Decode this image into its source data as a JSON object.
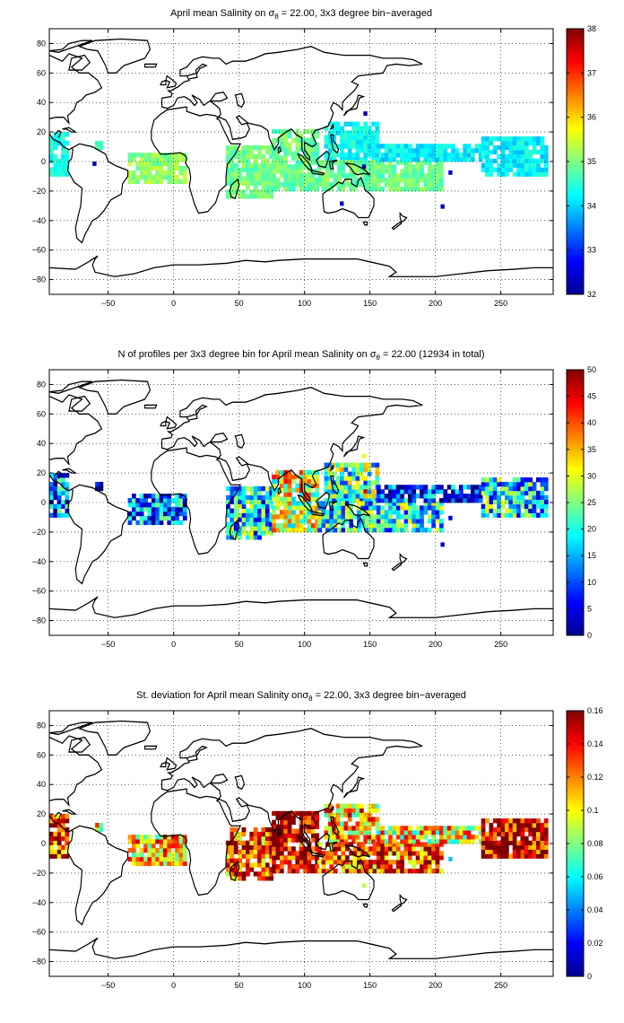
{
  "chart_data": [
    {
      "type": "heatmap",
      "title_pre": "April mean Salinity on ",
      "title_sym": "σ",
      "title_sub": "θ",
      "title_post": " = 22.00, 3x3 degree bin−averaged",
      "xlim": [
        -95,
        290
      ],
      "ylim": [
        -90,
        90
      ],
      "xticks": [
        -50,
        0,
        50,
        100,
        150,
        200,
        250
      ],
      "xtick_labels": [
        "−50",
        "0",
        "50",
        "100",
        "150",
        "200",
        "250"
      ],
      "yticks": [
        -80,
        -60,
        -40,
        -20,
        0,
        20,
        40,
        60,
        80
      ],
      "ytick_labels": [
        "−80",
        "−60",
        "−40",
        "−20",
        "0",
        "20",
        "40",
        "60",
        "80"
      ],
      "grid": true,
      "colorbar": {
        "range": [
          32,
          38
        ],
        "ticks": [
          32,
          33,
          34,
          35,
          36,
          37,
          38
        ],
        "tick_labels": [
          "32",
          "33",
          "34",
          "35",
          "36",
          "37",
          "38"
        ],
        "colormap": "jet"
      },
      "regions": [
        {
          "lon": [
            -95,
            -80
          ],
          "lat": [
            -10,
            18
          ],
          "value": 34.3
        },
        {
          "lon": [
            -60,
            -55
          ],
          "lat": [
            8,
            12
          ],
          "value": 34.6
        },
        {
          "lon": [
            -35,
            10
          ],
          "lat": [
            -15,
            5
          ],
          "value": 35.1
        },
        {
          "lon": [
            40,
            75
          ],
          "lat": [
            -25,
            10
          ],
          "value": 34.9
        },
        {
          "lon": [
            75,
            110
          ],
          "lat": [
            -20,
            20
          ],
          "value": 34.9
        },
        {
          "lon": [
            115,
            155
          ],
          "lat": [
            0,
            25
          ],
          "value": 34.3
        },
        {
          "lon": [
            110,
            205
          ],
          "lat": [
            -20,
            0
          ],
          "value": 34.9
        },
        {
          "lon": [
            155,
            235
          ],
          "lat": [
            0,
            10
          ],
          "value": 34.2
        },
        {
          "lon": [
            235,
            285
          ],
          "lat": [
            -10,
            15
          ],
          "value": 34.2
        }
      ],
      "outliers": [
        {
          "lon": 144,
          "lat": -5,
          "value": 32.2
        },
        {
          "lon": 145,
          "lat": 31,
          "value": 32.3
        },
        {
          "lon": 210,
          "lat": -9,
          "value": 32.4
        },
        {
          "lon": 204,
          "lat": -32,
          "value": 32.4
        },
        {
          "lon": 127,
          "lat": -30,
          "value": 32.4
        },
        {
          "lon": -62,
          "lat": -3,
          "value": 32.3
        }
      ]
    },
    {
      "type": "heatmap",
      "title_pre": "N of profiles per 3x3 degree bin for April mean Salinity on ",
      "title_sym": "σ",
      "title_sub": "θ",
      "title_post": " = 22.00 (12934 in total)",
      "xlim": [
        -95,
        290
      ],
      "ylim": [
        -90,
        90
      ],
      "xticks": [
        -50,
        0,
        50,
        100,
        150,
        200,
        250
      ],
      "xtick_labels": [
        "−50",
        "0",
        "50",
        "100",
        "150",
        "200",
        "250"
      ],
      "yticks": [
        -80,
        -60,
        -40,
        -20,
        0,
        20,
        40,
        60,
        80
      ],
      "ytick_labels": [
        "−80",
        "−60",
        "−40",
        "−20",
        "0",
        "20",
        "40",
        "60",
        "80"
      ],
      "grid": true,
      "colorbar": {
        "range": [
          0,
          50
        ],
        "ticks": [
          0,
          5,
          10,
          15,
          20,
          25,
          30,
          35,
          40,
          45,
          50
        ],
        "tick_labels": [
          "0",
          "5",
          "10",
          "15",
          "20",
          "25",
          "30",
          "35",
          "40",
          "45",
          "50"
        ],
        "colormap": "jet"
      },
      "regions": [
        {
          "lon": [
            -95,
            -80
          ],
          "lat": [
            -10,
            18
          ],
          "value": 12
        },
        {
          "lon": [
            -60,
            -55
          ],
          "lat": [
            8,
            12
          ],
          "value": 5
        },
        {
          "lon": [
            -35,
            10
          ],
          "lat": [
            -15,
            5
          ],
          "value": 12
        },
        {
          "lon": [
            40,
            75
          ],
          "lat": [
            -25,
            10
          ],
          "value": 18
        },
        {
          "lon": [
            75,
            110
          ],
          "lat": [
            -20,
            20
          ],
          "value": 30
        },
        {
          "lon": [
            115,
            155
          ],
          "lat": [
            0,
            25
          ],
          "value": 22
        },
        {
          "lon": [
            110,
            205
          ],
          "lat": [
            -20,
            0
          ],
          "value": 20
        },
        {
          "lon": [
            155,
            235
          ],
          "lat": [
            0,
            10
          ],
          "value": 8
        },
        {
          "lon": [
            235,
            285
          ],
          "lat": [
            -10,
            15
          ],
          "value": 18
        }
      ],
      "outliers": [
        {
          "lon": 144,
          "lat": 30,
          "value": 30
        },
        {
          "lon": 145,
          "lat": 6,
          "value": 45
        },
        {
          "lon": 210,
          "lat": -12,
          "value": 4
        },
        {
          "lon": 204,
          "lat": -30,
          "value": 3
        }
      ]
    },
    {
      "type": "heatmap",
      "title_pre": "St. deviation for April mean Salinity on",
      "title_sym": "σ",
      "title_sub": "θ",
      "title_post": " = 22.00, 3x3 degree bin−averaged",
      "xlim": [
        -95,
        290
      ],
      "ylim": [
        -90,
        90
      ],
      "xticks": [
        -50,
        0,
        50,
        100,
        150,
        200,
        250
      ],
      "xtick_labels": [
        "−50",
        "0",
        "50",
        "100",
        "150",
        "200",
        "250"
      ],
      "yticks": [
        -80,
        -60,
        -40,
        -20,
        0,
        20,
        40,
        60,
        80
      ],
      "ytick_labels": [
        "−80",
        "−60",
        "−40",
        "−20",
        "0",
        "20",
        "40",
        "60",
        "80"
      ],
      "grid": true,
      "colorbar": {
        "range": [
          0,
          0.16
        ],
        "ticks": [
          0,
          0.02,
          0.04,
          0.06,
          0.08,
          0.1,
          0.12,
          0.14,
          0.16
        ],
        "tick_labels": [
          "0",
          "0.02",
          "0.04",
          "0.06",
          "0.08",
          "0.1",
          "0.12",
          "0.14",
          "0.16"
        ],
        "colormap": "jet"
      },
      "regions": [
        {
          "lon": [
            -95,
            -80
          ],
          "lat": [
            -10,
            18
          ],
          "value": 0.14
        },
        {
          "lon": [
            -60,
            -55
          ],
          "lat": [
            8,
            12
          ],
          "value": 0.09
        },
        {
          "lon": [
            -35,
            10
          ],
          "lat": [
            -15,
            5
          ],
          "value": 0.11
        },
        {
          "lon": [
            40,
            75
          ],
          "lat": [
            -25,
            10
          ],
          "value": 0.13
        },
        {
          "lon": [
            75,
            110
          ],
          "lat": [
            -20,
            20
          ],
          "value": 0.15
        },
        {
          "lon": [
            115,
            155
          ],
          "lat": [
            0,
            25
          ],
          "value": 0.11
        },
        {
          "lon": [
            110,
            205
          ],
          "lat": [
            -20,
            0
          ],
          "value": 0.13
        },
        {
          "lon": [
            155,
            235
          ],
          "lat": [
            0,
            10
          ],
          "value": 0.1
        },
        {
          "lon": [
            235,
            285
          ],
          "lat": [
            -10,
            15
          ],
          "value": 0.15
        }
      ],
      "outliers": [
        {
          "lon": 144,
          "lat": -30,
          "value": 0.09
        },
        {
          "lon": 210,
          "lat": -12,
          "value": 0.05
        }
      ]
    }
  ]
}
